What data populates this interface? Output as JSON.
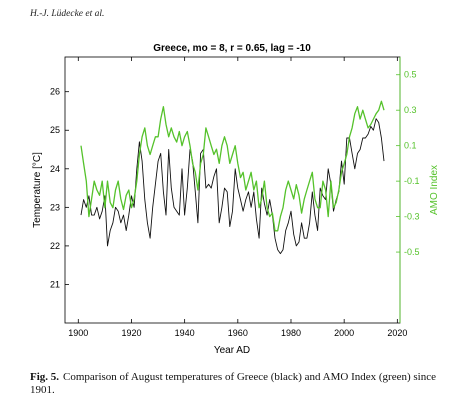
{
  "running_head": "H.-J. Lüdecke et al.",
  "caption": {
    "label": "Fig. 5.",
    "text": "Comparison of August temperatures of Greece (black) and AMO Index (green) since 1901."
  },
  "colors": {
    "temperature_line": "#111111",
    "amo_line": "#55c22b",
    "amo_axis": "#55c22b",
    "axes": "#000000",
    "grid": "#e6e6e6"
  },
  "chart_data": {
    "type": "line",
    "title": "Greece, mo = 8, r = 0.65, lag = -10",
    "xlabel": "Year AD",
    "ylabel": "Temperature [°C]",
    "y2label": "AMO Index",
    "xlim": [
      1895,
      2021
    ],
    "ylim": [
      20.0,
      26.9
    ],
    "y2lim": [
      -0.9,
      0.6
    ],
    "xticks": [
      1900,
      1920,
      1940,
      1960,
      1980,
      2000,
      2020
    ],
    "yticks": [
      21,
      22,
      23,
      24,
      25,
      26
    ],
    "y2ticks": [
      -0.5,
      -0.3,
      -0.1,
      0.1,
      0.3,
      0.5
    ],
    "y2ticklabels": [
      "-0.5",
      "-0.3",
      "-0.1",
      "0.1",
      "0.3",
      "0.5"
    ],
    "grid": false,
    "series": [
      {
        "name": "Greece August temperature",
        "axis": "left",
        "color": "#111111",
        "x": [
          1901,
          1902,
          1903,
          1904,
          1905,
          1906,
          1907,
          1908,
          1909,
          1910,
          1911,
          1912,
          1913,
          1914,
          1915,
          1916,
          1917,
          1918,
          1919,
          1920,
          1921,
          1922,
          1923,
          1924,
          1925,
          1926,
          1927,
          1928,
          1929,
          1930,
          1931,
          1932,
          1933,
          1934,
          1935,
          1936,
          1937,
          1938,
          1939,
          1940,
          1941,
          1942,
          1943,
          1944,
          1945,
          1946,
          1947,
          1948,
          1949,
          1950,
          1951,
          1952,
          1953,
          1954,
          1955,
          1956,
          1957,
          1958,
          1959,
          1960,
          1961,
          1962,
          1963,
          1964,
          1965,
          1966,
          1967,
          1968,
          1969,
          1970,
          1971,
          1972,
          1973,
          1974,
          1975,
          1976,
          1977,
          1978,
          1979,
          1980,
          1981,
          1982,
          1983,
          1984,
          1985,
          1986,
          1987,
          1988,
          1989,
          1990,
          1991,
          1992,
          1993,
          1994,
          1995,
          1996,
          1997,
          1998,
          1999,
          2000,
          2001,
          2002,
          2003,
          2004,
          2005,
          2006,
          2007,
          2008,
          2009,
          2010,
          2011,
          2012,
          2013,
          2014,
          2015
        ],
        "values": [
          22.8,
          23.2,
          23.0,
          23.3,
          22.8,
          22.8,
          23.0,
          22.7,
          22.9,
          23.3,
          22.0,
          22.4,
          22.6,
          23.0,
          22.9,
          22.6,
          22.8,
          22.4,
          22.8,
          23.3,
          23.0,
          24.0,
          24.7,
          24.2,
          23.2,
          22.6,
          22.2,
          23.0,
          23.6,
          24.2,
          24.4,
          23.4,
          22.8,
          24.5,
          23.5,
          23.0,
          22.9,
          22.8,
          24.0,
          22.8,
          23.5,
          24.5,
          24.2,
          23.4,
          22.6,
          24.4,
          24.5,
          23.5,
          23.6,
          23.5,
          23.8,
          24.0,
          22.6,
          23.0,
          23.5,
          23.4,
          22.5,
          22.9,
          24.0,
          23.5,
          23.2,
          22.9,
          23.2,
          23.4,
          23.0,
          23.4,
          22.7,
          22.2,
          23.5,
          23.1,
          22.8,
          23.2,
          22.8,
          22.2,
          21.9,
          21.8,
          21.9,
          22.4,
          22.6,
          22.9,
          22.3,
          22.0,
          22.1,
          22.6,
          22.2,
          22.2,
          22.6,
          23.4,
          22.8,
          22.4,
          23.5,
          23.3,
          23.2,
          24.0,
          23.6,
          22.9,
          23.2,
          23.4,
          24.2,
          23.6,
          24.8,
          24.8,
          24.4,
          24.0,
          24.4,
          24.5,
          24.8,
          24.8,
          24.9,
          25.1,
          25.0,
          25.3,
          25.2,
          24.8,
          24.2
        ]
      },
      {
        "name": "AMO Index",
        "axis": "right",
        "color": "#55c22b",
        "x": [
          1901,
          1902,
          1903,
          1904,
          1905,
          1906,
          1907,
          1908,
          1909,
          1910,
          1911,
          1912,
          1913,
          1914,
          1915,
          1916,
          1917,
          1918,
          1919,
          1920,
          1921,
          1922,
          1923,
          1924,
          1925,
          1926,
          1927,
          1928,
          1929,
          1930,
          1931,
          1932,
          1933,
          1934,
          1935,
          1936,
          1937,
          1938,
          1939,
          1940,
          1941,
          1942,
          1943,
          1944,
          1945,
          1946,
          1947,
          1948,
          1949,
          1950,
          1951,
          1952,
          1953,
          1954,
          1955,
          1956,
          1957,
          1958,
          1959,
          1960,
          1961,
          1962,
          1963,
          1964,
          1965,
          1966,
          1967,
          1968,
          1969,
          1970,
          1971,
          1972,
          1973,
          1974,
          1975,
          1976,
          1977,
          1978,
          1979,
          1980,
          1981,
          1982,
          1983,
          1984,
          1985,
          1986,
          1987,
          1988,
          1989,
          1990,
          1991,
          1992,
          1993,
          1994,
          1995,
          1996,
          1997,
          1998,
          1999,
          2000,
          2001,
          2002,
          2003,
          2004,
          2005,
          2006,
          2007,
          2008,
          2009,
          2010,
          2011,
          2012,
          2013,
          2014,
          2015
        ],
        "values": [
          0.1,
          0.0,
          -0.1,
          -0.3,
          -0.2,
          -0.1,
          -0.15,
          -0.18,
          -0.1,
          -0.25,
          -0.1,
          -0.22,
          -0.25,
          -0.15,
          -0.1,
          -0.2,
          -0.26,
          -0.18,
          -0.15,
          -0.25,
          -0.2,
          -0.1,
          0.05,
          0.15,
          0.2,
          0.1,
          0.05,
          0.1,
          0.15,
          0.15,
          0.25,
          0.32,
          0.22,
          0.15,
          0.2,
          0.15,
          0.12,
          0.18,
          0.1,
          0.15,
          0.18,
          0.1,
          0.0,
          -0.05,
          -0.15,
          0.0,
          0.05,
          0.2,
          0.15,
          0.1,
          0.05,
          0.08,
          0.0,
          0.1,
          0.15,
          0.1,
          0.0,
          0.05,
          0.1,
          0.0,
          -0.08,
          -0.05,
          -0.15,
          -0.1,
          -0.05,
          -0.15,
          -0.1,
          -0.25,
          -0.2,
          -0.1,
          -0.25,
          -0.3,
          -0.28,
          -0.38,
          -0.38,
          -0.3,
          -0.25,
          -0.15,
          -0.1,
          -0.15,
          -0.2,
          -0.12,
          -0.18,
          -0.28,
          -0.2,
          -0.15,
          -0.1,
          -0.05,
          -0.2,
          -0.25,
          -0.25,
          -0.1,
          -0.15,
          -0.3,
          -0.1,
          -0.25,
          -0.22,
          -0.15,
          -0.05,
          0.0,
          0.05,
          0.15,
          0.2,
          0.28,
          0.32,
          0.25,
          0.3,
          0.25,
          0.2,
          0.22,
          0.25,
          0.28,
          0.3,
          0.35,
          0.3
        ]
      }
    ]
  }
}
